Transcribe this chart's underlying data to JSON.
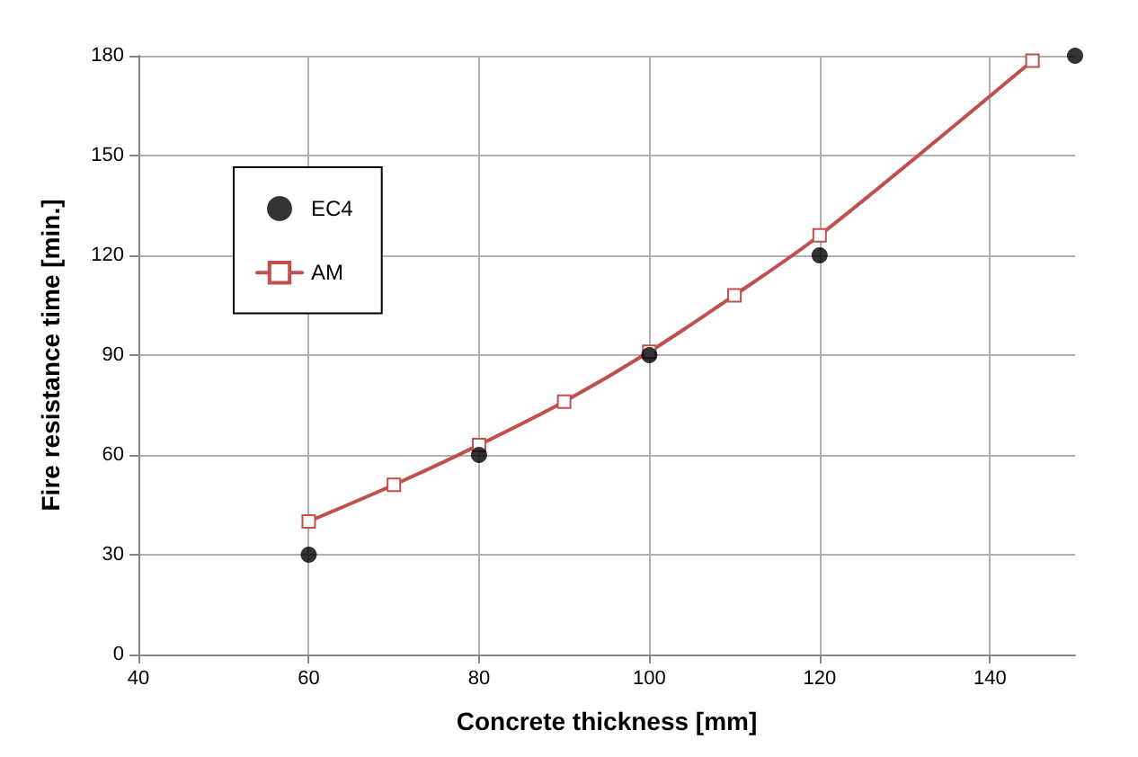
{
  "chart_data": {
    "type": "scatter",
    "xlabel": "Concrete thickness [mm]",
    "ylabel": "Fire resistance time [min.]",
    "xlim": [
      40,
      150
    ],
    "xticks": [
      40,
      60,
      80,
      100,
      120,
      140
    ],
    "ylim": [
      0,
      180
    ],
    "yticks": [
      0,
      30,
      60,
      90,
      120,
      150,
      180
    ],
    "grid": true,
    "legend": "top left",
    "series": [
      {
        "name": "EC4",
        "type": "scatter",
        "color": "#000000",
        "marker": "circle",
        "x": [
          60,
          80,
          100,
          120,
          150
        ],
        "values": [
          30,
          60,
          90,
          120,
          180
        ]
      },
      {
        "name": "AM",
        "type": "line",
        "color": "#c0504d",
        "marker": "square",
        "line_style": "solid",
        "x": [
          60,
          70,
          80,
          90,
          100,
          110,
          120,
          145
        ],
        "values": [
          40,
          51,
          63,
          76,
          91,
          108,
          126,
          178.5
        ]
      }
    ]
  }
}
